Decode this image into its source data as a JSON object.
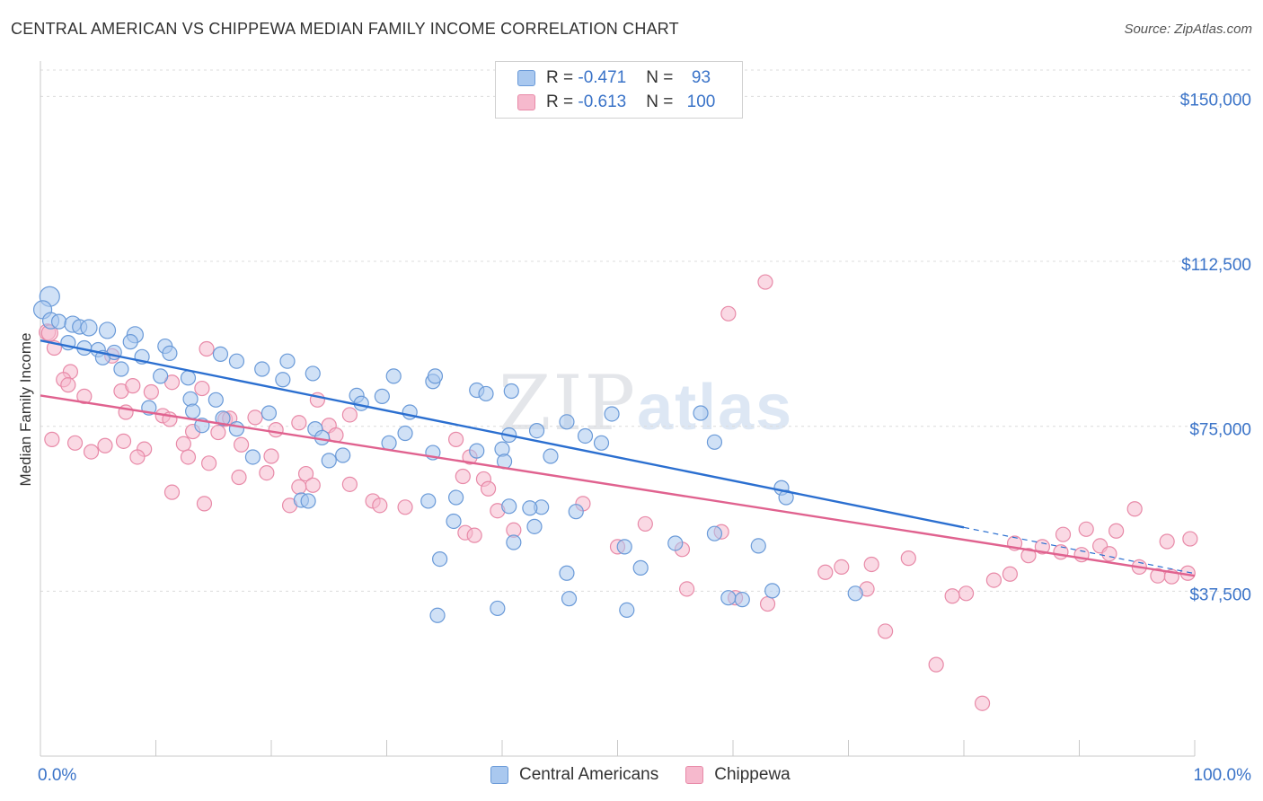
{
  "title": "CENTRAL AMERICAN VS CHIPPEWA MEDIAN FAMILY INCOME CORRELATION CHART",
  "source": "Source: ZipAtlas.com",
  "watermark": {
    "zip": "ZIP",
    "atlas": "atlas"
  },
  "legend": {
    "rows": [
      {
        "r_label": "R = ",
        "r_value": "-0.471",
        "n_label": "N = ",
        "n_value": " 93"
      },
      {
        "r_label": "R = ",
        "r_value": "-0.613",
        "n_label": "N = ",
        "n_value": "100"
      }
    ]
  },
  "colors": {
    "blue_fill": "#a9c8ef",
    "blue_stroke": "#6a9ad8",
    "blue_line": "#2b6fd0",
    "pink_fill": "#f6b9cd",
    "pink_stroke": "#e88aa8",
    "pink_line": "#e0628f",
    "grid": "#dcdcdc",
    "tick_text": "#3a73c8"
  },
  "chart_data": {
    "type": "scatter",
    "title": "CENTRAL AMERICAN VS CHIPPEWA MEDIAN FAMILY INCOME CORRELATION CHART",
    "xlabel": "",
    "ylabel": "Median Family Income",
    "xlim": [
      0,
      100
    ],
    "ylim": [
      0,
      156000
    ],
    "x_tick_labels": [
      "0.0%",
      "100.0%"
    ],
    "y_ticks": [
      37500,
      75000,
      112500,
      150000
    ],
    "y_tick_labels": [
      "$37,500",
      "$75,000",
      "$112,500",
      "$150,000"
    ],
    "series": [
      {
        "name": "Central Americans",
        "r": -0.471,
        "n": 93,
        "trend": {
          "x0": 0,
          "y0": 94500,
          "x1": 80,
          "y1": 52000,
          "dash_to_x": 100,
          "dash_to_y": 41500
        },
        "points": [
          [
            0.8,
            104500,
            11
          ],
          [
            0.2,
            101500,
            10
          ],
          [
            0.9,
            99000,
            9
          ],
          [
            1.6,
            98800,
            8
          ],
          [
            2.8,
            98200,
            9
          ],
          [
            3.4,
            97600,
            8
          ],
          [
            4.2,
            97400,
            9
          ],
          [
            5.8,
            96800,
            9
          ],
          [
            8.2,
            95800,
            9
          ],
          [
            2.4,
            94000,
            8
          ],
          [
            7.8,
            94200,
            8
          ],
          [
            3.8,
            92800,
            8
          ],
          [
            5.0,
            92400,
            8
          ],
          [
            6.4,
            91800,
            8
          ],
          [
            10.8,
            93200,
            8
          ],
          [
            11.2,
            91600,
            8
          ],
          [
            15.6,
            91400,
            8
          ],
          [
            5.4,
            90600,
            8
          ],
          [
            8.8,
            90800,
            8
          ],
          [
            17.0,
            89800,
            8
          ],
          [
            19.2,
            88000,
            8
          ],
          [
            21.4,
            89800,
            8
          ],
          [
            7.0,
            88000,
            8
          ],
          [
            10.4,
            86400,
            8
          ],
          [
            12.8,
            86000,
            8
          ],
          [
            23.6,
            87000,
            8
          ],
          [
            21.0,
            85600,
            8
          ],
          [
            34.0,
            85200,
            8
          ],
          [
            34.2,
            86400,
            8
          ],
          [
            40.8,
            83000,
            8
          ],
          [
            37.8,
            83200,
            8
          ],
          [
            38.6,
            82400,
            8
          ],
          [
            13.0,
            81200,
            8
          ],
          [
            15.2,
            81000,
            8
          ],
          [
            27.4,
            82000,
            8
          ],
          [
            27.8,
            80200,
            8
          ],
          [
            29.6,
            81800,
            8
          ],
          [
            32.0,
            78200,
            8
          ],
          [
            19.8,
            78000,
            8
          ],
          [
            9.4,
            79200,
            8
          ],
          [
            13.2,
            78400,
            8
          ],
          [
            15.8,
            76800,
            8
          ],
          [
            17.0,
            74400,
            8
          ],
          [
            23.8,
            74400,
            8
          ],
          [
            14.0,
            75200,
            8
          ],
          [
            31.6,
            73400,
            8
          ],
          [
            24.4,
            72400,
            8
          ],
          [
            30.2,
            71200,
            8
          ],
          [
            49.5,
            77800,
            8
          ],
          [
            57.2,
            78000,
            8
          ],
          [
            48.6,
            71200,
            8
          ],
          [
            40.0,
            69800,
            8
          ],
          [
            37.8,
            69400,
            8
          ],
          [
            34.0,
            69000,
            8
          ],
          [
            26.2,
            68400,
            8
          ],
          [
            25.0,
            67200,
            8
          ],
          [
            18.4,
            68000,
            8
          ],
          [
            40.2,
            67000,
            8
          ],
          [
            44.2,
            68200,
            8
          ],
          [
            58.4,
            71400,
            8
          ],
          [
            64.2,
            61000,
            8
          ],
          [
            64.6,
            58800,
            8
          ],
          [
            36.0,
            58800,
            8
          ],
          [
            33.6,
            58000,
            8
          ],
          [
            22.6,
            58200,
            8
          ],
          [
            23.2,
            58000,
            8
          ],
          [
            40.6,
            56800,
            8
          ],
          [
            43.4,
            56600,
            8
          ],
          [
            42.4,
            56400,
            8
          ],
          [
            46.4,
            55600,
            8
          ],
          [
            42.8,
            52200,
            8
          ],
          [
            35.8,
            53400,
            8
          ],
          [
            41.0,
            48600,
            8
          ],
          [
            55.0,
            48400,
            8
          ],
          [
            62.2,
            47800,
            8
          ],
          [
            50.6,
            47600,
            8
          ],
          [
            52.0,
            42800,
            8
          ],
          [
            45.6,
            41600,
            8
          ],
          [
            39.6,
            33600,
            8
          ],
          [
            50.8,
            33200,
            8
          ],
          [
            59.6,
            36000,
            8
          ],
          [
            63.4,
            37600,
            8
          ],
          [
            60.8,
            35600,
            8
          ],
          [
            70.6,
            37000,
            8
          ],
          [
            45.8,
            35800,
            8
          ],
          [
            34.4,
            32000,
            8
          ],
          [
            34.6,
            44800,
            8
          ],
          [
            58.4,
            50600,
            8
          ],
          [
            40.6,
            73000,
            8
          ],
          [
            43.0,
            74000,
            8
          ],
          [
            47.2,
            72800,
            8
          ],
          [
            45.6,
            76000,
            8
          ],
          [
            30.6,
            86400,
            8
          ]
        ]
      },
      {
        "name": "Chippewa",
        "r": -0.613,
        "n": 100,
        "trend": {
          "x0": 0,
          "y0": 82000,
          "x1": 100,
          "y1": 41000
        },
        "points": [
          [
            0.6,
            96400,
            9
          ],
          [
            0.8,
            96200,
            9
          ],
          [
            1.2,
            92800,
            8
          ],
          [
            2.6,
            87400,
            8
          ],
          [
            2.0,
            85600,
            8
          ],
          [
            2.4,
            84400,
            8
          ],
          [
            3.8,
            81800,
            8
          ],
          [
            6.2,
            91000,
            8
          ],
          [
            7.0,
            83000,
            8
          ],
          [
            8.0,
            84200,
            8
          ],
          [
            9.6,
            82800,
            8
          ],
          [
            11.4,
            85000,
            8
          ],
          [
            14.4,
            92600,
            8
          ],
          [
            14.0,
            83600,
            8
          ],
          [
            16.0,
            76600,
            8
          ],
          [
            16.4,
            76800,
            8
          ],
          [
            18.6,
            77000,
            8
          ],
          [
            20.4,
            74200,
            8
          ],
          [
            22.4,
            75800,
            8
          ],
          [
            24.0,
            81000,
            8
          ],
          [
            25.0,
            75200,
            8
          ],
          [
            25.6,
            73000,
            8
          ],
          [
            26.8,
            77600,
            8
          ],
          [
            7.4,
            78200,
            8
          ],
          [
            10.6,
            77400,
            8
          ],
          [
            11.2,
            76600,
            8
          ],
          [
            12.4,
            71000,
            8
          ],
          [
            13.2,
            73800,
            8
          ],
          [
            15.4,
            73600,
            8
          ],
          [
            17.4,
            70800,
            8
          ],
          [
            1.0,
            72000,
            8
          ],
          [
            3.0,
            71200,
            8
          ],
          [
            5.6,
            70600,
            8
          ],
          [
            7.2,
            71600,
            8
          ],
          [
            9.0,
            69800,
            8
          ],
          [
            4.4,
            69200,
            8
          ],
          [
            8.4,
            68000,
            8
          ],
          [
            20.0,
            68200,
            8
          ],
          [
            12.8,
            68000,
            8
          ],
          [
            14.6,
            66600,
            8
          ],
          [
            19.6,
            64400,
            8
          ],
          [
            17.2,
            63400,
            8
          ],
          [
            23.0,
            64200,
            8
          ],
          [
            26.8,
            61800,
            8
          ],
          [
            23.6,
            61600,
            8
          ],
          [
            22.4,
            61200,
            8
          ],
          [
            28.8,
            58000,
            8
          ],
          [
            29.4,
            57000,
            8
          ],
          [
            31.6,
            56600,
            8
          ],
          [
            37.2,
            68000,
            8
          ],
          [
            36.6,
            63600,
            8
          ],
          [
            38.4,
            63000,
            8
          ],
          [
            36.0,
            72000,
            8
          ],
          [
            38.8,
            60800,
            8
          ],
          [
            11.4,
            60000,
            8
          ],
          [
            14.2,
            57400,
            8
          ],
          [
            21.6,
            57000,
            8
          ],
          [
            39.6,
            55800,
            8
          ],
          [
            36.8,
            50800,
            8
          ],
          [
            37.6,
            50200,
            8
          ],
          [
            41.0,
            51400,
            8
          ],
          [
            47.0,
            57400,
            8
          ],
          [
            52.4,
            52800,
            8
          ],
          [
            50.0,
            47600,
            8
          ],
          [
            55.6,
            47000,
            8
          ],
          [
            59.0,
            51000,
            8
          ],
          [
            56.0,
            38000,
            8
          ],
          [
            60.2,
            36000,
            8
          ],
          [
            63.0,
            34600,
            8
          ],
          [
            68.0,
            41800,
            8
          ],
          [
            69.4,
            43000,
            8
          ],
          [
            72.0,
            43600,
            8
          ],
          [
            75.2,
            45000,
            8
          ],
          [
            71.6,
            38000,
            8
          ],
          [
            73.2,
            28400,
            8
          ],
          [
            79.0,
            36400,
            8
          ],
          [
            80.2,
            37000,
            8
          ],
          [
            82.6,
            40000,
            8
          ],
          [
            84.4,
            48400,
            8
          ],
          [
            86.8,
            47600,
            8
          ],
          [
            88.4,
            46400,
            8
          ],
          [
            90.2,
            45800,
            8
          ],
          [
            91.8,
            47800,
            8
          ],
          [
            92.6,
            46000,
            8
          ],
          [
            96.8,
            41000,
            8
          ],
          [
            98.0,
            40800,
            8
          ],
          [
            99.4,
            41600,
            8
          ],
          [
            95.2,
            43000,
            8
          ],
          [
            88.6,
            50400,
            8
          ],
          [
            94.8,
            56200,
            8
          ],
          [
            97.6,
            48800,
            8
          ],
          [
            99.6,
            49400,
            8
          ],
          [
            93.2,
            51200,
            8
          ],
          [
            90.6,
            51600,
            8
          ],
          [
            84.0,
            41400,
            8
          ],
          [
            85.6,
            45600,
            8
          ],
          [
            81.6,
            12000,
            8
          ],
          [
            77.6,
            20800,
            8
          ],
          [
            62.8,
            107800,
            8
          ],
          [
            59.6,
            100600,
            8
          ]
        ]
      }
    ]
  },
  "bottom_legend": [
    {
      "label": "Central Americans"
    },
    {
      "label": "Chippewa"
    }
  ]
}
